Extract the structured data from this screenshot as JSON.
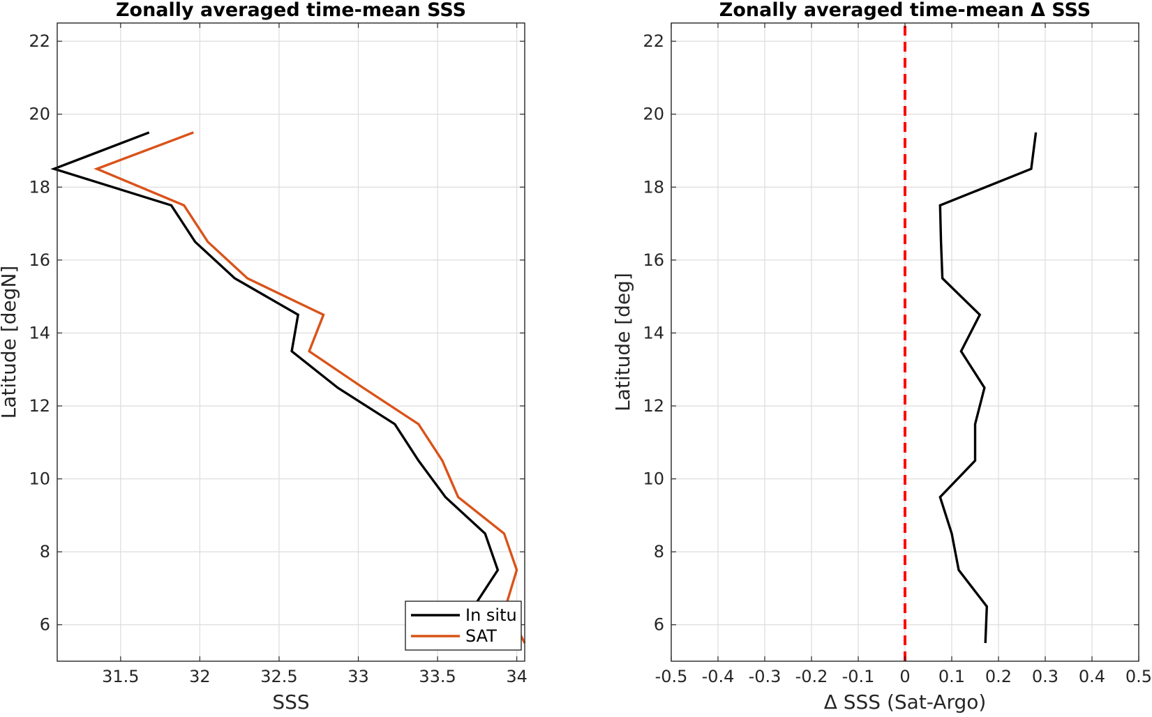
{
  "chart_data": [
    {
      "type": "line",
      "title": "Zonally averaged time-mean SSS",
      "xlabel": "SSS",
      "ylabel": "Latitude [degN]",
      "xlim": [
        31.1,
        34.05
      ],
      "ylim": [
        5,
        22.5
      ],
      "xticks": [
        31.5,
        32,
        32.5,
        33,
        33.5,
        34
      ],
      "xtick_labels": [
        "31.5",
        "32",
        "32.5",
        "33",
        "33.5",
        "34"
      ],
      "yticks": [
        6,
        8,
        10,
        12,
        14,
        16,
        18,
        20,
        22
      ],
      "ytick_labels": [
        "6",
        "8",
        "10",
        "12",
        "14",
        "16",
        "18",
        "20",
        "22"
      ],
      "grid": true,
      "legend": {
        "position": "bottom-right"
      },
      "series": [
        {
          "name": "In situ",
          "color": "#000000",
          "points": [
            [
              31.68,
              19.5
            ],
            [
              31.08,
              18.5
            ],
            [
              31.82,
              17.5
            ],
            [
              31.97,
              16.5
            ],
            [
              32.22,
              15.5
            ],
            [
              32.62,
              14.5
            ],
            [
              32.58,
              13.5
            ],
            [
              32.87,
              12.5
            ],
            [
              33.23,
              11.5
            ],
            [
              33.38,
              10.5
            ],
            [
              33.55,
              9.5
            ],
            [
              33.8,
              8.5
            ],
            [
              33.88,
              7.5
            ],
            [
              33.73,
              6.5
            ]
          ]
        },
        {
          "name": "SAT",
          "color": "#D95319",
          "points": [
            [
              31.96,
              19.5
            ],
            [
              31.35,
              18.5
            ],
            [
              31.9,
              17.5
            ],
            [
              32.05,
              16.5
            ],
            [
              32.3,
              15.5
            ],
            [
              32.78,
              14.5
            ],
            [
              32.69,
              13.5
            ],
            [
              33.03,
              12.5
            ],
            [
              33.38,
              11.5
            ],
            [
              33.53,
              10.5
            ],
            [
              33.63,
              9.5
            ],
            [
              33.92,
              8.5
            ],
            [
              34.0,
              7.5
            ],
            [
              33.93,
              6.5
            ],
            [
              34.05,
              5.5
            ]
          ]
        }
      ]
    },
    {
      "type": "line",
      "title": "Zonally averaged time-mean Δ SSS",
      "xlabel": "Δ SSS (Sat-Argo)",
      "ylabel": "Latitude [deg]",
      "xlim": [
        -0.5,
        0.5
      ],
      "ylim": [
        5,
        22.5
      ],
      "xticks": [
        -0.5,
        -0.4,
        -0.3,
        -0.2,
        -0.1,
        0,
        0.1,
        0.2,
        0.3,
        0.4,
        0.5
      ],
      "xtick_labels": [
        "-0.5",
        "-0.4",
        "-0.3",
        "-0.2",
        "-0.1",
        "0",
        "0.1",
        "0.2",
        "0.3",
        "0.4",
        "0.5"
      ],
      "yticks": [
        6,
        8,
        10,
        12,
        14,
        16,
        18,
        20,
        22
      ],
      "ytick_labels": [
        "6",
        "8",
        "10",
        "12",
        "14",
        "16",
        "18",
        "20",
        "22"
      ],
      "grid": true,
      "reference_line": {
        "x": 0,
        "color": "#FF0000",
        "style": "dashed"
      },
      "series": [
        {
          "color": "#000000",
          "points": [
            [
              0.28,
              19.5
            ],
            [
              0.27,
              18.5
            ],
            [
              0.075,
              17.5
            ],
            [
              0.077,
              16.5
            ],
            [
              0.08,
              15.5
            ],
            [
              0.16,
              14.5
            ],
            [
              0.12,
              13.5
            ],
            [
              0.17,
              12.5
            ],
            [
              0.15,
              11.5
            ],
            [
              0.15,
              10.5
            ],
            [
              0.075,
              9.5
            ],
            [
              0.1,
              8.5
            ],
            [
              0.115,
              7.5
            ],
            [
              0.175,
              6.5
            ],
            [
              0.172,
              5.5
            ]
          ]
        }
      ]
    }
  ]
}
